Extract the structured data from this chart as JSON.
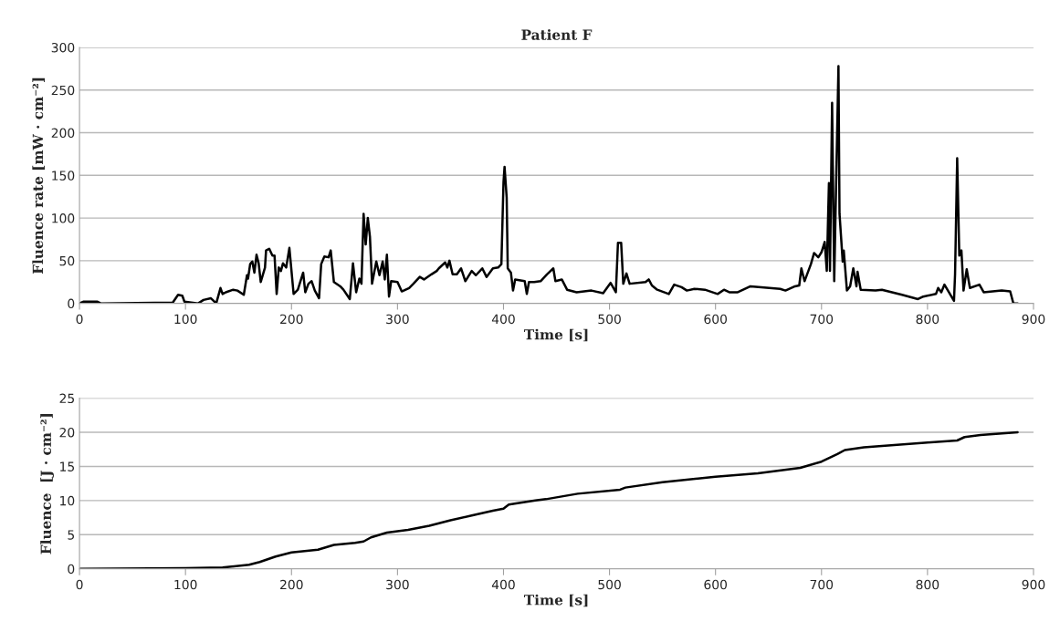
{
  "chart_data": [
    {
      "type": "line",
      "title": "Patient F",
      "xlabel": "Time [s]",
      "ylabel": "Fluence rate [mW · cm⁻²]",
      "xlim": [
        0,
        900
      ],
      "xticks": [
        0,
        100,
        200,
        300,
        400,
        500,
        600,
        700,
        800,
        900
      ],
      "ylim": [
        0,
        300
      ],
      "yticks": [
        0,
        50,
        100,
        150,
        200,
        250,
        300
      ],
      "grid": "y",
      "marker": "none",
      "line_style": "solid",
      "series": [
        {
          "color": "#000000",
          "x": [
            0,
            4,
            17,
            20,
            88,
            93,
            97,
            99,
            112,
            117,
            124,
            129,
            133,
            135,
            138,
            145,
            149,
            155,
            158,
            159,
            161,
            163,
            165,
            167,
            169,
            171,
            175,
            176,
            179,
            182,
            184,
            186,
            188,
            190,
            192,
            195,
            198,
            202,
            206,
            211,
            213,
            216,
            219,
            222,
            226,
            228,
            231,
            235,
            237,
            240,
            246,
            249,
            255,
            258,
            261,
            264,
            266,
            268,
            270,
            272,
            274,
            276,
            280,
            283,
            286,
            288,
            290,
            292,
            294,
            300,
            304,
            311,
            315,
            321,
            325,
            332,
            337,
            339,
            345,
            347,
            349,
            352,
            356,
            360,
            364,
            370,
            374,
            380,
            384,
            390,
            395,
            398,
            400,
            401,
            403,
            404,
            407,
            409,
            411,
            420,
            422,
            424,
            429,
            435,
            441,
            447,
            449,
            455,
            460,
            469,
            483,
            494,
            501,
            506,
            508,
            511,
            513,
            516,
            519,
            534,
            537,
            540,
            545,
            556,
            561,
            568,
            573,
            580,
            590,
            602,
            608,
            613,
            621,
            633,
            661,
            666,
            675,
            679,
            681,
            684,
            690,
            693,
            697,
            700,
            703,
            705,
            707,
            708,
            710,
            712,
            716,
            717,
            720,
            721,
            724,
            727,
            730,
            733,
            734,
            737,
            751,
            757,
            776,
            791,
            796,
            808,
            810,
            813,
            816,
            825,
            826,
            828,
            830,
            832,
            834,
            837,
            840,
            849,
            853,
            870,
            878,
            881,
            885
          ],
          "values": [
            0,
            2,
            2,
            0,
            1,
            10,
            9,
            2,
            0,
            4,
            6,
            0,
            18,
            11,
            13,
            16,
            15,
            10,
            33,
            29,
            46,
            49,
            36,
            57,
            47,
            25,
            42,
            62,
            64,
            56,
            56,
            11,
            42,
            38,
            47,
            42,
            65,
            11,
            16,
            36,
            13,
            23,
            26,
            15,
            6,
            46,
            55,
            54,
            62,
            25,
            20,
            16,
            5,
            47,
            13,
            29,
            23,
            105,
            69,
            100,
            78,
            23,
            49,
            33,
            49,
            28,
            57,
            8,
            26,
            25,
            14,
            18,
            23,
            31,
            28,
            34,
            38,
            41,
            48,
            42,
            50,
            34,
            34,
            41,
            26,
            38,
            33,
            41,
            31,
            41,
            42,
            46,
            142,
            160,
            124,
            41,
            36,
            15,
            28,
            26,
            11,
            25,
            25,
            26,
            34,
            41,
            26,
            28,
            16,
            13,
            15,
            12,
            24,
            13,
            71,
            71,
            23,
            35,
            23,
            25,
            28,
            21,
            16,
            11,
            22,
            19,
            15,
            17,
            16,
            11,
            16,
            13,
            13,
            20,
            17,
            15,
            20,
            21,
            41,
            26,
            46,
            59,
            54,
            60,
            72,
            38,
            141,
            38,
            235,
            26,
            278,
            105,
            49,
            62,
            15,
            20,
            41,
            20,
            37,
            16,
            15,
            16,
            10,
            5,
            8,
            11,
            18,
            13,
            22,
            3,
            34,
            170,
            56,
            62,
            15,
            40,
            18,
            22,
            13,
            15,
            14,
            0,
            0
          ]
        }
      ]
    },
    {
      "type": "line",
      "xlabel": "Time [s]",
      "ylabel": "Fluence  [J · cm⁻²]",
      "xlim": [
        0,
        900
      ],
      "xticks": [
        0,
        100,
        200,
        300,
        400,
        500,
        600,
        700,
        800,
        900
      ],
      "ylim": [
        0,
        25
      ],
      "yticks": [
        0,
        5,
        10,
        15,
        20,
        25
      ],
      "grid": "y",
      "marker": "none",
      "line_style": "solid",
      "series": [
        {
          "color": "#000000",
          "x": [
            0,
            100,
            135,
            160,
            170,
            185,
            200,
            225,
            240,
            260,
            268,
            275,
            290,
            310,
            330,
            350,
            370,
            390,
            400,
            405,
            430,
            440,
            470,
            510,
            515,
            550,
            600,
            640,
            680,
            700,
            715,
            722,
            740,
            800,
            828,
            835,
            850,
            885
          ],
          "values": [
            0,
            0.1,
            0.2,
            0.6,
            1.0,
            1.8,
            2.4,
            2.8,
            3.5,
            3.8,
            4.0,
            4.6,
            5.3,
            5.7,
            6.3,
            7.1,
            7.8,
            8.5,
            8.8,
            9.4,
            10.0,
            10.2,
            11.0,
            11.6,
            11.9,
            12.7,
            13.5,
            14.0,
            14.8,
            15.7,
            16.8,
            17.4,
            17.8,
            18.5,
            18.8,
            19.3,
            19.6,
            20.0
          ]
        }
      ]
    }
  ]
}
